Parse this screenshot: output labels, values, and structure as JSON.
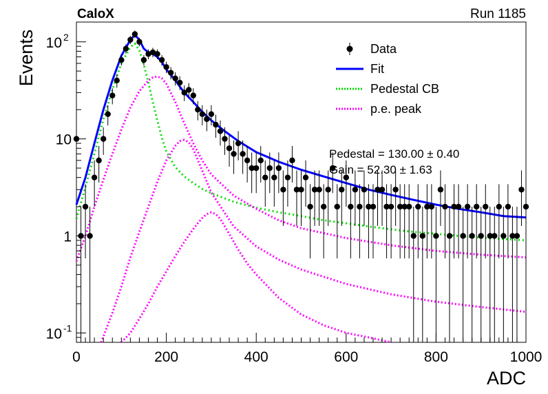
{
  "header": {
    "experiment": "CaloX",
    "run_label": "Run 1185"
  },
  "fit_stats": {
    "pedestal_text": "Pedestal = 130.00 ± 0.40",
    "second_text": "Gain = 52.30 ± 1.63"
  },
  "colors": {
    "data": "#000000",
    "fit": "#0000ff",
    "pedestal": "#00dd00",
    "pe_peak": "#ff00ff"
  },
  "chart_data": {
    "type": "scatter",
    "xlabel": "ADC",
    "ylabel": "Events",
    "xlim": [
      0,
      1000
    ],
    "ylim": [
      0.08,
      160
    ],
    "y_scale": "log",
    "x_ticks": [
      0,
      200,
      400,
      600,
      800,
      1000
    ],
    "y_ticks": [
      {
        "value": 0.1,
        "label": "10",
        "exp": "-1"
      },
      {
        "value": 1,
        "label": "1",
        "exp": ""
      },
      {
        "value": 10,
        "label": "10",
        "exp": ""
      },
      {
        "value": 100,
        "label": "10",
        "exp": "2"
      }
    ],
    "legend": {
      "position": "top-right",
      "entries": [
        {
          "label": "Data",
          "style": "marker",
          "color": "#000000"
        },
        {
          "label": "Fit",
          "style": "line",
          "color": "#0000ff"
        },
        {
          "label": "Pedestal CB",
          "style": "dotted",
          "color": "#00dd00"
        },
        {
          "label": "p.e. peak",
          "style": "dotted",
          "color": "#ff00ff"
        }
      ]
    },
    "series": [
      {
        "name": "Data",
        "x": [
          0,
          10,
          20,
          30,
          40,
          50,
          60,
          70,
          80,
          90,
          100,
          110,
          120,
          130,
          140,
          150,
          160,
          170,
          180,
          190,
          200,
          210,
          220,
          230,
          240,
          250,
          260,
          270,
          280,
          290,
          300,
          310,
          320,
          330,
          340,
          350,
          360,
          370,
          380,
          390,
          400,
          410,
          420,
          430,
          440,
          450,
          460,
          470,
          480,
          490,
          500,
          510,
          520,
          530,
          540,
          550,
          560,
          570,
          580,
          590,
          600,
          610,
          620,
          630,
          640,
          650,
          660,
          670,
          680,
          690,
          700,
          710,
          720,
          730,
          740,
          750,
          760,
          770,
          780,
          790,
          800,
          810,
          820,
          830,
          840,
          850,
          860,
          870,
          880,
          890,
          900,
          910,
          920,
          930,
          940,
          950,
          960,
          970,
          980,
          990,
          1000
        ],
        "y": [
          10,
          1,
          2,
          1,
          4,
          6,
          10,
          18,
          28,
          40,
          65,
          85,
          105,
          120,
          100,
          65,
          75,
          78,
          75,
          65,
          55,
          48,
          42,
          38,
          30,
          32,
          28,
          20,
          18,
          16,
          18,
          14,
          12,
          10,
          8,
          7,
          9,
          7,
          6,
          5,
          5,
          6,
          4,
          5,
          4,
          5,
          3,
          4,
          6,
          3,
          3,
          4,
          2,
          3,
          3,
          2,
          3,
          5,
          2,
          3,
          4,
          2,
          3,
          2,
          3,
          2,
          2,
          3,
          3,
          2,
          2,
          3,
          2,
          2,
          2,
          1,
          2,
          1,
          2,
          2,
          1,
          3,
          2,
          1,
          2,
          2,
          1,
          2,
          1,
          2,
          1,
          2,
          1,
          1,
          2,
          1,
          2,
          1,
          1,
          3,
          2
        ]
      },
      {
        "name": "Fit",
        "x": [
          0,
          20,
          40,
          60,
          80,
          100,
          120,
          130,
          140,
          150,
          160,
          170,
          180,
          190,
          200,
          220,
          240,
          260,
          280,
          300,
          330,
          360,
          400,
          450,
          500,
          550,
          600,
          650,
          700,
          750,
          800,
          850,
          900,
          950,
          1000
        ],
        "y": [
          2.1,
          4,
          9,
          20,
          40,
          72,
          105,
          118,
          105,
          85,
          78,
          75,
          70,
          62,
          52,
          40,
          30,
          24,
          19,
          15.5,
          12,
          9.5,
          7.3,
          5.8,
          4.8,
          4.1,
          3.5,
          3.0,
          2.65,
          2.35,
          2.1,
          1.9,
          1.75,
          1.6,
          1.55
        ]
      },
      {
        "name": "Pedestal CB",
        "x": [
          0,
          20,
          40,
          60,
          80,
          100,
          120,
          130,
          140,
          150,
          160,
          170,
          180,
          190,
          200,
          220,
          240,
          260,
          280,
          300,
          350,
          400,
          450,
          500,
          550,
          600,
          650,
          700,
          750,
          800,
          850,
          900,
          950,
          1000
        ],
        "y": [
          1.5,
          3.2,
          7,
          16,
          32,
          60,
          88,
          96,
          82,
          58,
          38,
          24,
          15.5,
          10.3,
          7.4,
          5.1,
          4.1,
          3.5,
          3.05,
          2.75,
          2.25,
          1.95,
          1.75,
          1.6,
          1.45,
          1.35,
          1.25,
          1.17,
          1.1,
          1.05,
          1.0,
          0.96,
          0.93,
          0.9
        ]
      },
      {
        "name": "p.e. peak 1",
        "x": [
          0,
          20,
          40,
          60,
          80,
          100,
          120,
          140,
          160,
          170,
          180,
          190,
          200,
          220,
          240,
          260,
          280,
          300,
          350,
          400,
          450,
          500,
          600,
          700,
          800,
          900,
          1000
        ],
        "y": [
          0.55,
          1,
          2,
          3.8,
          7,
          12.5,
          21,
          31,
          40,
          43,
          44,
          42,
          37,
          24,
          14.5,
          9,
          6,
          4.3,
          2.6,
          1.9,
          1.45,
          1.2,
          0.95,
          0.8,
          0.7,
          0.64,
          0.6
        ]
      },
      {
        "name": "p.e. peak 2",
        "x": [
          55,
          80,
          100,
          120,
          140,
          160,
          180,
          200,
          220,
          230,
          240,
          250,
          260,
          280,
          300,
          350,
          400,
          450,
          500,
          600,
          700,
          800,
          900,
          1000
        ],
        "y": [
          0.08,
          0.16,
          0.3,
          0.6,
          1.1,
          2,
          3.6,
          6,
          8.5,
          9.5,
          9.8,
          9.2,
          7.8,
          4.7,
          2.8,
          1.25,
          0.78,
          0.57,
          0.45,
          0.32,
          0.25,
          0.21,
          0.185,
          0.165
        ]
      },
      {
        "name": "p.e. peak 3",
        "x": [
          100,
          120,
          140,
          160,
          180,
          200,
          220,
          240,
          260,
          270,
          280,
          290,
          300,
          310,
          320,
          340,
          360,
          380,
          400,
          450,
          500,
          550,
          600,
          650,
          700
        ],
        "y": [
          0.08,
          0.1,
          0.14,
          0.2,
          0.3,
          0.43,
          0.62,
          0.87,
          1.18,
          1.35,
          1.53,
          1.68,
          1.75,
          1.68,
          1.5,
          1.05,
          0.72,
          0.52,
          0.4,
          0.23,
          0.155,
          0.12,
          0.1,
          0.09,
          0.08
        ]
      }
    ]
  }
}
